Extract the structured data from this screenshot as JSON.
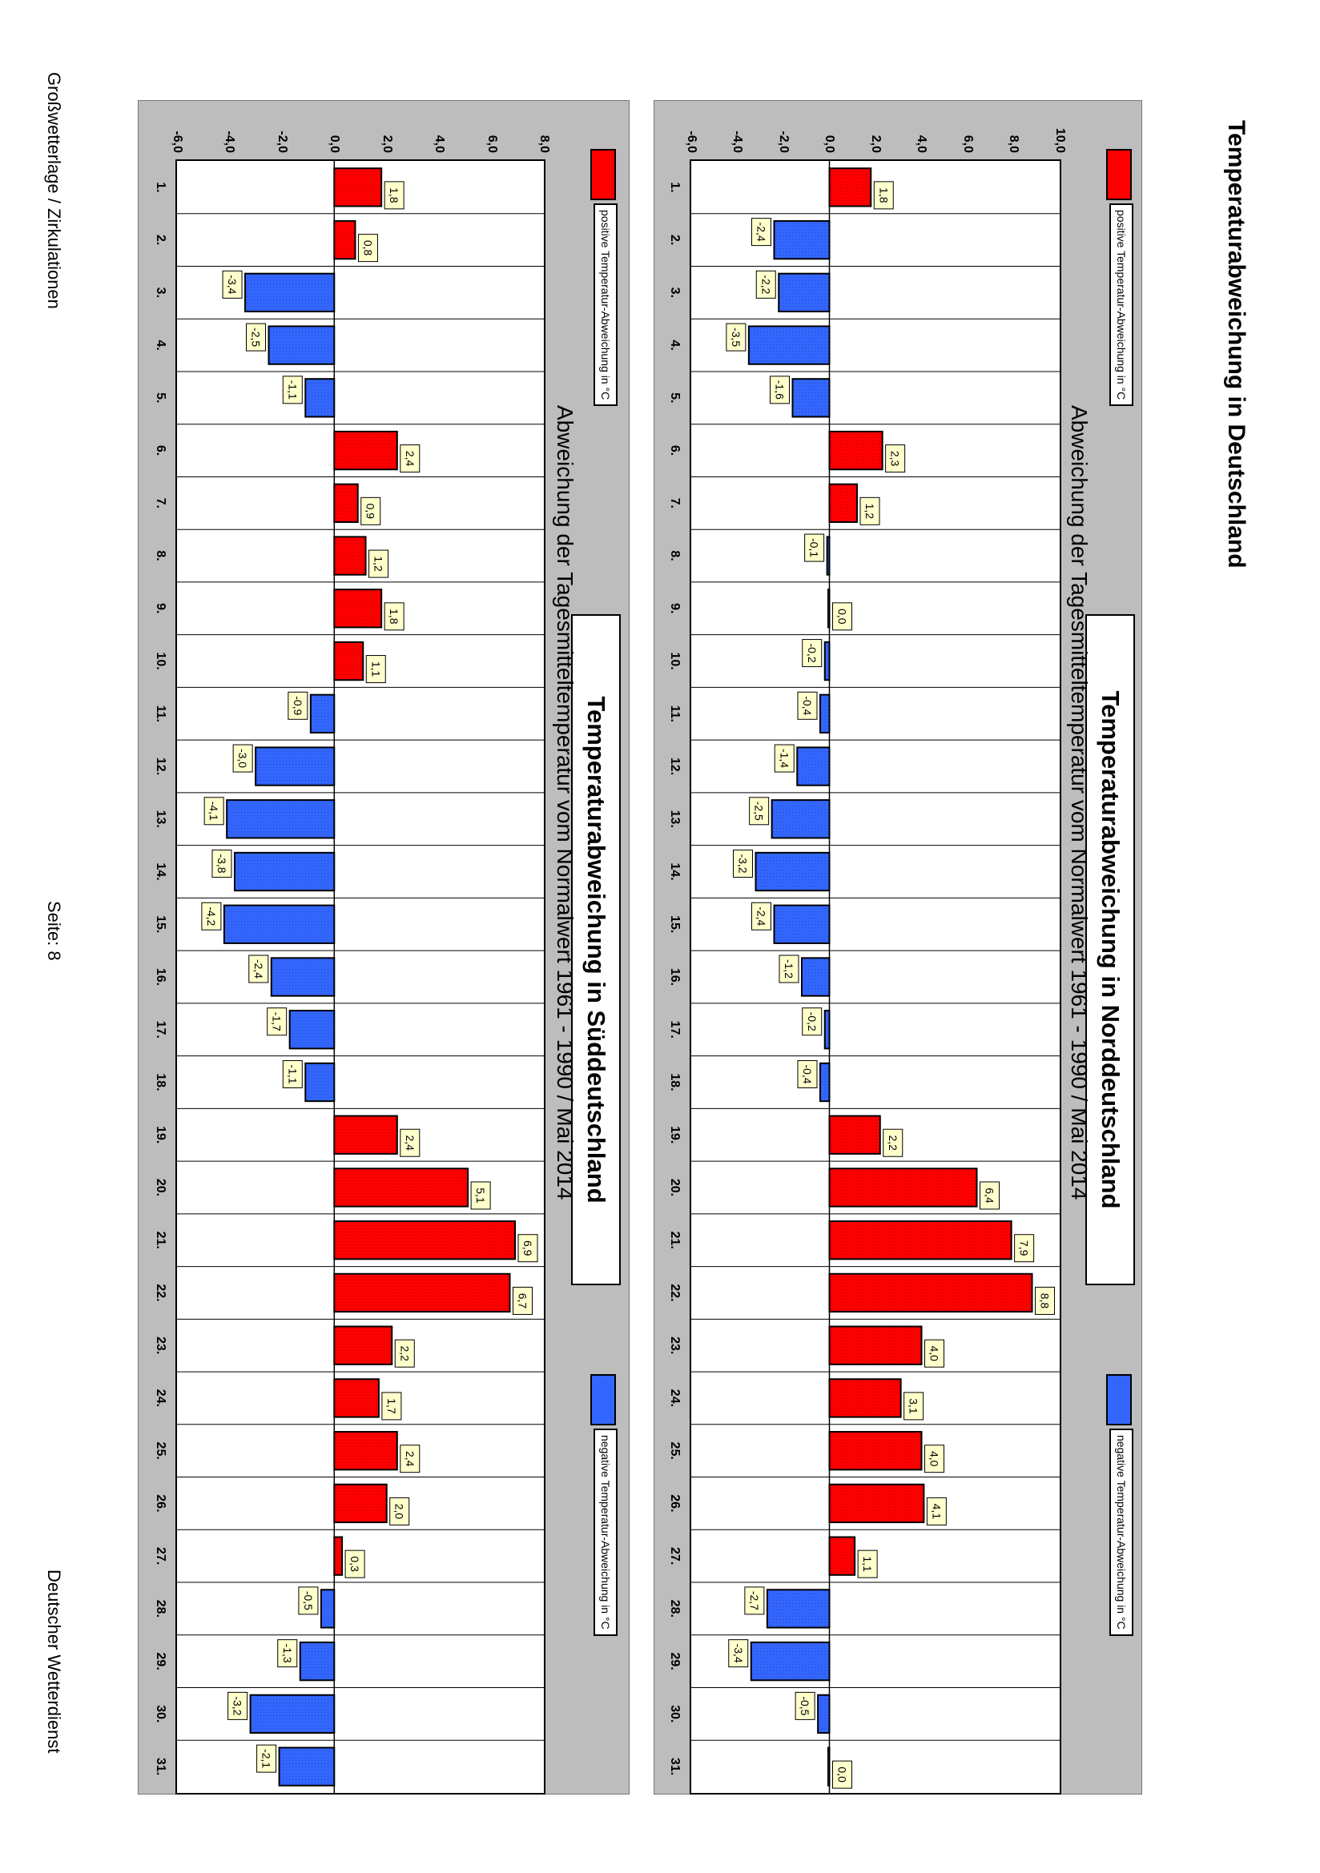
{
  "page": {
    "title": "Temperaturabweichung in Deutschland",
    "footer_left": "Großwetterlage / Zirkulationen",
    "footer_center": "Seite: 8",
    "footer_right": "Deutscher Wetterdienst"
  },
  "legend": {
    "positive": "positive Temperatur-Abweichung in °C",
    "negative": "negative Temperatur-Abweichung in °C",
    "positive_color": "#ff0000",
    "negative_color": "#3366ff"
  },
  "chart_data": [
    {
      "type": "bar",
      "title": "Temperaturabweichung in Norddeutschland",
      "subtitle": "Abweichung der Tagesmitteltemperatur vom Normalwert 1961 - 1990  /  Mai 2014",
      "xlabel": "",
      "ylabel": "",
      "ylim": [
        -6,
        10
      ],
      "yticks": [
        "-6,0",
        "-4,0",
        "-2,0",
        "0,0",
        "2,0",
        "4,0",
        "6,0",
        "8,0",
        "10,0"
      ],
      "categories": [
        "1.",
        "2.",
        "3.",
        "4.",
        "5.",
        "6.",
        "7.",
        "8.",
        "9.",
        "10.",
        "11.",
        "12.",
        "13.",
        "14.",
        "15.",
        "16.",
        "17.",
        "18.",
        "19.",
        "20.",
        "21.",
        "22.",
        "23.",
        "24.",
        "25.",
        "26.",
        "27.",
        "28.",
        "29.",
        "30.",
        "31."
      ],
      "values": [
        1.8,
        -2.4,
        -2.2,
        -3.5,
        -1.6,
        2.3,
        1.2,
        -0.1,
        0.0,
        -0.2,
        -0.4,
        -1.4,
        -2.5,
        -3.2,
        -2.4,
        -1.2,
        -0.2,
        -0.4,
        2.2,
        6.4,
        7.9,
        8.8,
        4.0,
        3.1,
        4.0,
        4.1,
        1.1,
        -2.7,
        -3.4,
        -0.5,
        0.0
      ],
      "labels": [
        "1,8",
        "-2,4",
        "-2,2",
        "-3,5",
        "-1,6",
        "2,3",
        "1,2",
        "-0,1",
        "0,0",
        "-0,2",
        "-0,4",
        "-1,4",
        "-2,5",
        "-3,2",
        "-2,4",
        "-1,2",
        "-0,2",
        "-0,4",
        "2,2",
        "6,4",
        "7,9",
        "8,8",
        "4,0",
        "3,1",
        "4,0",
        "4,1",
        "1,1",
        "-2,7",
        "-3,4",
        "-0,5",
        "0,0"
      ]
    },
    {
      "type": "bar",
      "title": "Temperaturabweichung in Süddeutschland",
      "subtitle": "Abweichung der Tagesmitteltemperatur vom Normalwert 1961 - 1990  /  Mai 2014",
      "xlabel": "",
      "ylabel": "",
      "ylim": [
        -6,
        8
      ],
      "yticks": [
        "-6,0",
        "-4,0",
        "-2,0",
        "0,0",
        "2,0",
        "4,0",
        "6,0",
        "8,0"
      ],
      "categories": [
        "1.",
        "2.",
        "3.",
        "4.",
        "5.",
        "6.",
        "7.",
        "8.",
        "9.",
        "10.",
        "11.",
        "12.",
        "13.",
        "14.",
        "15.",
        "16.",
        "17.",
        "18.",
        "19.",
        "20.",
        "21.",
        "22.",
        "23.",
        "24.",
        "25.",
        "26.",
        "27.",
        "28.",
        "29.",
        "30.",
        "31."
      ],
      "values": [
        1.8,
        0.8,
        -3.4,
        -2.5,
        -1.1,
        2.4,
        0.9,
        1.2,
        1.8,
        1.1,
        -0.9,
        -3.0,
        -4.1,
        -3.8,
        -4.2,
        -2.4,
        -1.7,
        -1.1,
        2.4,
        5.1,
        6.9,
        6.7,
        2.2,
        1.7,
        2.4,
        2.0,
        0.3,
        -0.5,
        -1.3,
        -3.2,
        -2.1
      ],
      "labels": [
        "1,8",
        "0,8",
        "-3,4",
        "-2,5",
        "-1,1",
        "2,4",
        "0,9",
        "1,2",
        "1,8",
        "1,1",
        "-0,9",
        "-3,0",
        "-4,1",
        "-3,8",
        "-4,2",
        "-2,4",
        "-1,7",
        "-1,1",
        "2,4",
        "5,1",
        "6,9",
        "6,7",
        "2,2",
        "1,7",
        "2,4",
        "2,0",
        "0,3",
        "-0,5",
        "-1,3",
        "-3,2",
        "-2,1"
      ]
    }
  ]
}
